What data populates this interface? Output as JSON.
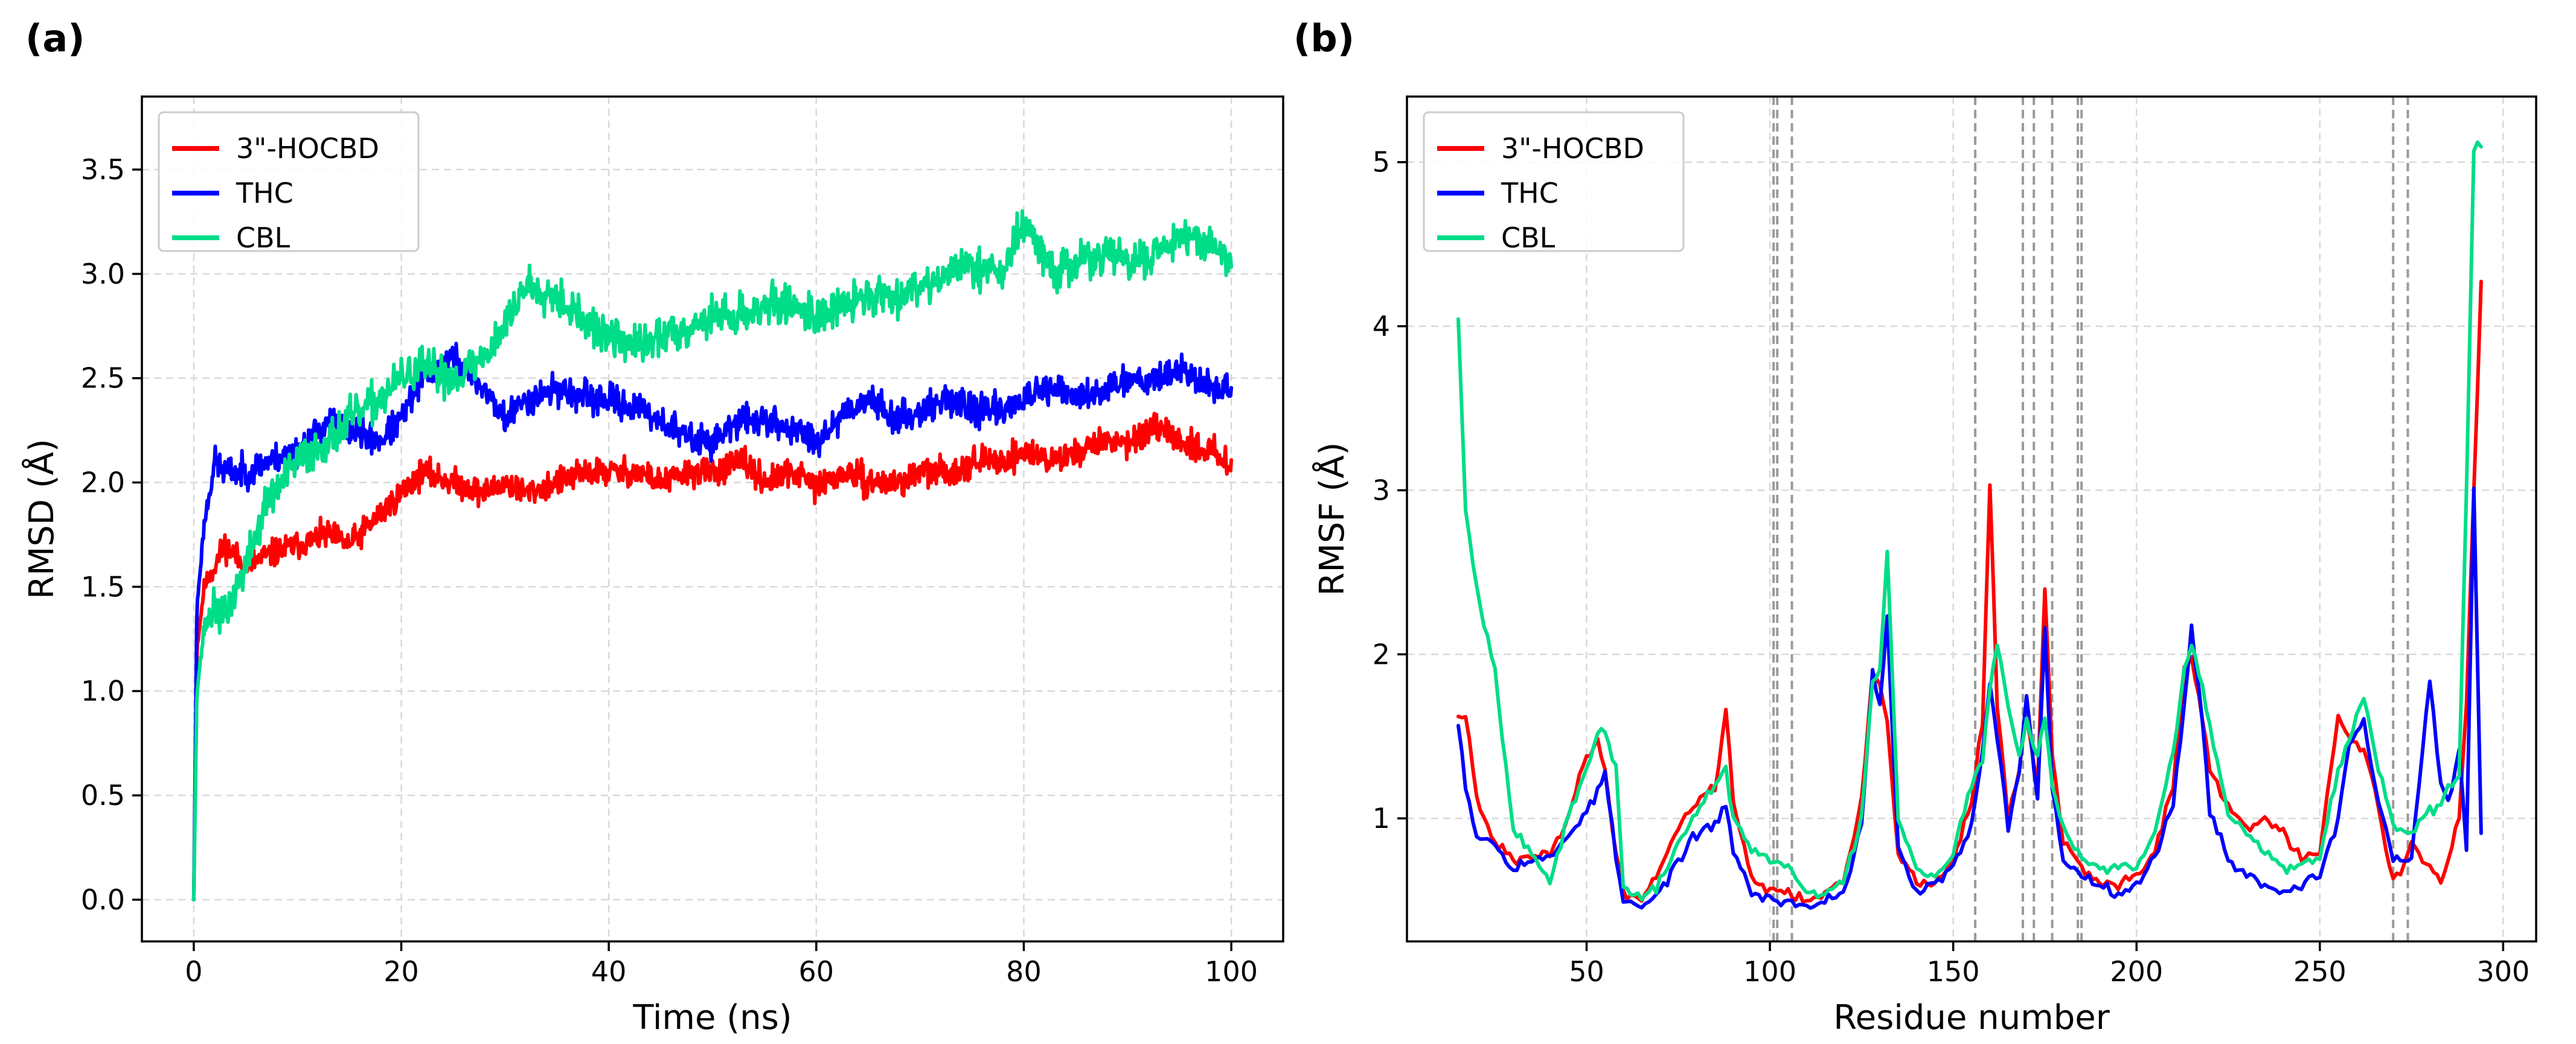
{
  "chart_data": [
    {
      "type": "line",
      "panel": "(a)",
      "xlabel": "Time (ns)",
      "ylabel": "RMSD (Å)",
      "xlim": [
        -5,
        105
      ],
      "ylim": [
        -0.2,
        3.85
      ],
      "xticks": [
        0,
        20,
        40,
        60,
        80,
        100
      ],
      "yticks": [
        0.0,
        0.5,
        1.0,
        1.5,
        2.0,
        2.5,
        3.0,
        3.5
      ],
      "ytick_decimals": 1,
      "grid": true,
      "legend_position": "top-left",
      "series": [
        {
          "name": "3\"-HOCBD",
          "color": "#ff0000",
          "x": [
            0,
            0.3,
            1,
            2,
            3,
            5,
            7,
            10,
            13,
            15,
            18,
            20,
            22,
            25,
            28,
            30,
            32,
            35,
            38,
            40,
            43,
            45,
            48,
            50,
            53,
            55,
            58,
            60,
            63,
            65,
            68,
            70,
            73,
            75,
            78,
            80,
            83,
            85,
            88,
            90,
            93,
            95,
            98,
            100
          ],
          "y": [
            0.0,
            1.2,
            1.5,
            1.6,
            1.7,
            1.6,
            1.65,
            1.7,
            1.75,
            1.7,
            1.85,
            1.95,
            2.05,
            2.0,
            1.95,
            2.0,
            1.95,
            2.0,
            2.05,
            2.05,
            2.05,
            2.0,
            2.05,
            2.05,
            2.1,
            2.0,
            2.05,
            1.98,
            2.05,
            2.0,
            2.0,
            2.05,
            2.05,
            2.1,
            2.1,
            2.15,
            2.1,
            2.15,
            2.2,
            2.2,
            2.25,
            2.2,
            2.15,
            2.1
          ]
        },
        {
          "name": "THC",
          "color": "#0000ff",
          "x": [
            0,
            0.3,
            1,
            2,
            3,
            5,
            7,
            10,
            13,
            15,
            18,
            20,
            22,
            25,
            28,
            30,
            32,
            35,
            38,
            40,
            43,
            45,
            48,
            50,
            53,
            55,
            58,
            60,
            63,
            65,
            68,
            70,
            73,
            75,
            78,
            80,
            83,
            85,
            88,
            90,
            93,
            95,
            98,
            100
          ],
          "y": [
            0.0,
            1.4,
            1.8,
            2.1,
            2.05,
            2.05,
            2.1,
            2.15,
            2.3,
            2.25,
            2.2,
            2.3,
            2.5,
            2.6,
            2.45,
            2.3,
            2.4,
            2.45,
            2.4,
            2.4,
            2.35,
            2.3,
            2.2,
            2.2,
            2.3,
            2.3,
            2.25,
            2.2,
            2.35,
            2.4,
            2.3,
            2.35,
            2.4,
            2.35,
            2.35,
            2.4,
            2.45,
            2.4,
            2.45,
            2.5,
            2.5,
            2.55,
            2.45,
            2.45
          ]
        },
        {
          "name": "CBL",
          "color": "#00dd88",
          "x": [
            0,
            0.3,
            1,
            2,
            3,
            5,
            7,
            10,
            13,
            15,
            18,
            20,
            22,
            25,
            28,
            30,
            32,
            35,
            38,
            40,
            43,
            45,
            48,
            50,
            53,
            55,
            58,
            60,
            63,
            65,
            68,
            70,
            73,
            75,
            78,
            80,
            83,
            85,
            88,
            90,
            93,
            95,
            98,
            100
          ],
          "y": [
            0.0,
            1.0,
            1.3,
            1.4,
            1.35,
            1.6,
            1.9,
            2.1,
            2.2,
            2.3,
            2.4,
            2.5,
            2.55,
            2.5,
            2.6,
            2.75,
            2.95,
            2.9,
            2.75,
            2.7,
            2.65,
            2.7,
            2.75,
            2.8,
            2.8,
            2.85,
            2.85,
            2.8,
            2.85,
            2.9,
            2.9,
            2.95,
            3.0,
            3.05,
            3.0,
            3.25,
            3.0,
            3.05,
            3.1,
            3.05,
            3.1,
            3.2,
            3.15,
            3.05
          ]
        }
      ]
    },
    {
      "type": "line",
      "panel": "(b)",
      "xlabel": "Residue number",
      "ylabel": "RMSF (Å)",
      "xlim": [
        1,
        309
      ],
      "ylim": [
        0.25,
        5.4
      ],
      "xticks": [
        50,
        100,
        150,
        200,
        250,
        300
      ],
      "yticks": [
        1,
        2,
        3,
        4,
        5
      ],
      "ytick_decimals": 0,
      "grid": true,
      "legend_position": "top-left",
      "vertical_markers": [
        101,
        102,
        106,
        156,
        169,
        172,
        177,
        184,
        185,
        270,
        274
      ],
      "series": [
        {
          "name": "3\"-HOCBD",
          "color": "#ff0000",
          "x": [
            15,
            17,
            20,
            25,
            30,
            35,
            40,
            45,
            50,
            53,
            55,
            58,
            60,
            65,
            70,
            75,
            80,
            85,
            88,
            90,
            95,
            100,
            105,
            110,
            115,
            120,
            125,
            128,
            130,
            132,
            135,
            140,
            145,
            150,
            155,
            158,
            160,
            162,
            165,
            168,
            170,
            173,
            175,
            177,
            180,
            185,
            190,
            195,
            200,
            205,
            210,
            213,
            215,
            218,
            220,
            225,
            230,
            235,
            240,
            245,
            250,
            255,
            258,
            262,
            265,
            270,
            275,
            280,
            283,
            285,
            288,
            290,
            292,
            294
          ],
          "y": [
            1.6,
            1.65,
            1.1,
            0.85,
            0.75,
            0.75,
            0.8,
            1.0,
            1.4,
            1.45,
            1.3,
            0.8,
            0.55,
            0.5,
            0.7,
            0.95,
            1.1,
            1.2,
            1.65,
            1.1,
            0.65,
            0.55,
            0.55,
            0.5,
            0.55,
            0.6,
            1.1,
            1.9,
            1.8,
            1.6,
            0.8,
            0.6,
            0.6,
            0.75,
            1.1,
            1.6,
            3.05,
            1.7,
            1.0,
            1.3,
            1.6,
            1.2,
            2.4,
            1.4,
            0.85,
            0.7,
            0.6,
            0.6,
            0.65,
            0.8,
            1.2,
            1.9,
            2.0,
            1.6,
            1.3,
            1.05,
            0.95,
            1.0,
            0.9,
            0.75,
            0.8,
            1.6,
            1.5,
            1.4,
            1.2,
            0.6,
            0.85,
            0.7,
            0.6,
            0.75,
            1.0,
            1.7,
            3.0,
            4.25
          ]
        },
        {
          "name": "THC",
          "color": "#0000ff",
          "x": [
            15,
            17,
            20,
            25,
            30,
            35,
            40,
            45,
            50,
            53,
            55,
            58,
            60,
            65,
            70,
            75,
            80,
            85,
            88,
            90,
            95,
            100,
            105,
            110,
            115,
            120,
            125,
            128,
            130,
            132,
            135,
            140,
            145,
            150,
            155,
            158,
            160,
            162,
            165,
            168,
            170,
            173,
            175,
            177,
            180,
            185,
            190,
            195,
            200,
            205,
            210,
            213,
            215,
            218,
            220,
            225,
            230,
            235,
            240,
            245,
            250,
            255,
            258,
            262,
            265,
            270,
            275,
            280,
            283,
            285,
            288,
            290,
            292,
            294
          ],
          "y": [
            1.6,
            1.2,
            0.9,
            0.85,
            0.7,
            0.75,
            0.75,
            0.9,
            1.05,
            1.15,
            1.3,
            0.75,
            0.5,
            0.45,
            0.55,
            0.75,
            0.9,
            0.95,
            1.1,
            0.8,
            0.55,
            0.5,
            0.5,
            0.45,
            0.5,
            0.55,
            0.95,
            1.9,
            1.7,
            2.2,
            0.8,
            0.55,
            0.6,
            0.7,
            0.95,
            1.4,
            1.8,
            1.5,
            0.95,
            1.3,
            1.75,
            1.1,
            2.15,
            1.2,
            0.75,
            0.65,
            0.6,
            0.55,
            0.6,
            0.75,
            1.1,
            1.7,
            2.15,
            1.6,
            1.05,
            0.75,
            0.65,
            0.6,
            0.55,
            0.6,
            0.65,
            1.0,
            1.45,
            1.6,
            1.2,
            0.75,
            0.75,
            1.85,
            1.2,
            1.1,
            1.4,
            0.8,
            3.05,
            0.9
          ]
        },
        {
          "name": "CBL",
          "color": "#00dd88",
          "x": [
            15,
            17,
            20,
            25,
            30,
            35,
            40,
            45,
            50,
            53,
            55,
            58,
            60,
            65,
            70,
            75,
            80,
            85,
            88,
            90,
            95,
            100,
            105,
            110,
            115,
            120,
            125,
            128,
            130,
            132,
            135,
            140,
            145,
            150,
            155,
            158,
            160,
            162,
            165,
            168,
            170,
            173,
            175,
            177,
            180,
            185,
            190,
            195,
            200,
            205,
            210,
            213,
            215,
            218,
            220,
            225,
            230,
            235,
            240,
            245,
            250,
            255,
            258,
            262,
            265,
            270,
            275,
            280,
            283,
            285,
            288,
            290,
            292,
            294
          ],
          "y": [
            4.05,
            2.9,
            2.4,
            1.9,
            0.95,
            0.8,
            0.6,
            1.0,
            1.3,
            1.5,
            1.55,
            1.3,
            0.6,
            0.5,
            0.6,
            0.85,
            1.05,
            1.2,
            1.3,
            1.0,
            0.8,
            0.75,
            0.7,
            0.55,
            0.55,
            0.6,
            1.0,
            1.85,
            1.9,
            2.65,
            1.0,
            0.7,
            0.65,
            0.8,
            1.2,
            1.35,
            1.8,
            2.05,
            1.7,
            1.4,
            1.6,
            1.4,
            1.6,
            1.2,
            0.95,
            0.75,
            0.7,
            0.7,
            0.7,
            0.9,
            1.4,
            1.9,
            2.05,
            1.8,
            1.55,
            1.05,
            0.9,
            0.8,
            0.7,
            0.7,
            0.75,
            1.3,
            1.45,
            1.75,
            1.4,
            0.95,
            0.9,
            1.05,
            1.05,
            1.2,
            1.25,
            3.0,
            5.1,
            5.1
          ]
        }
      ]
    }
  ]
}
